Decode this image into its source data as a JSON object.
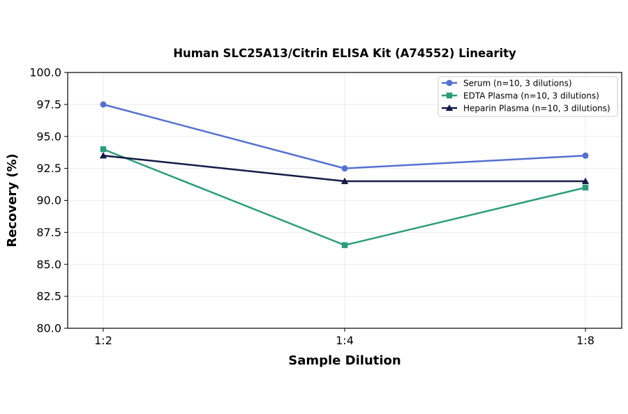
{
  "chart_data": {
    "type": "line",
    "title": "Human SLC25A13/Citrin ELISA Kit (A74552) Linearity",
    "xlabel": "Sample Dilution",
    "ylabel": "Recovery (%)",
    "categories": [
      "1:2",
      "1:4",
      "1:8"
    ],
    "ylim": [
      80.0,
      100.0
    ],
    "yticks": [
      "80.0",
      "82.5",
      "85.0",
      "87.5",
      "90.0",
      "92.5",
      "95.0",
      "97.5",
      "100.0"
    ],
    "grid": true,
    "legend_position": "top-right",
    "series": [
      {
        "name": "Serum (n=10, 3 dilutions)",
        "values": [
          97.5,
          92.5,
          93.5
        ],
        "color": "#5470d0",
        "marker": "circle"
      },
      {
        "name": "EDTA Plasma (n=10, 3 dilutions)",
        "values": [
          94.0,
          86.5,
          91.0
        ],
        "color": "#2a9d78",
        "marker": "square"
      },
      {
        "name": "Heparin Plasma (n=10, 3 dilutions)",
        "values": [
          93.5,
          91.5,
          91.5
        ],
        "color": "#141a45",
        "marker": "triangle"
      }
    ]
  }
}
